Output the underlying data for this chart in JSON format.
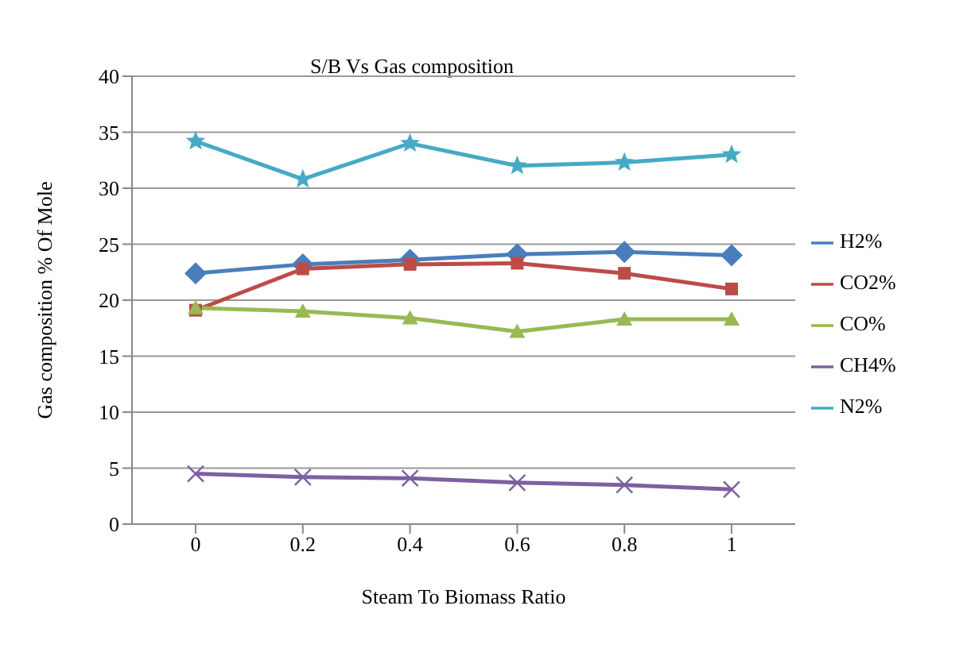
{
  "chart_data": {
    "type": "line",
    "title": "S/B  Vs  Gas composition",
    "xlabel": "Steam To Biomass Ratio",
    "ylabel": "Gas composition % Of Mole",
    "categories": [
      "0",
      "0.2",
      "0.4",
      "0.6",
      "0.8",
      "1"
    ],
    "series": [
      {
        "name": "H2%",
        "color": "#4a7ebb",
        "marker": "diamond",
        "values": [
          22.4,
          23.2,
          23.6,
          24.1,
          24.3,
          24.0
        ]
      },
      {
        "name": "CO2%",
        "color": "#be4b48",
        "marker": "square",
        "values": [
          19.1,
          22.8,
          23.2,
          23.3,
          22.4,
          21.0
        ]
      },
      {
        "name": "CO%",
        "color": "#98b954",
        "marker": "triangle",
        "values": [
          19.3,
          19.0,
          18.4,
          17.2,
          18.3,
          18.3
        ]
      },
      {
        "name": "CH4%",
        "color": "#7d60a0",
        "marker": "cross",
        "values": [
          4.5,
          4.2,
          4.1,
          3.7,
          3.5,
          3.1
        ]
      },
      {
        "name": "N2%",
        "color": "#46aac5",
        "marker": "star",
        "values": [
          34.2,
          30.8,
          34.0,
          32.0,
          32.3,
          33.0
        ]
      }
    ],
    "ylim": [
      0,
      40
    ],
    "yticks": [
      0,
      5,
      10,
      15,
      20,
      25,
      30,
      35,
      40
    ],
    "grid": "y",
    "legend": "right"
  }
}
